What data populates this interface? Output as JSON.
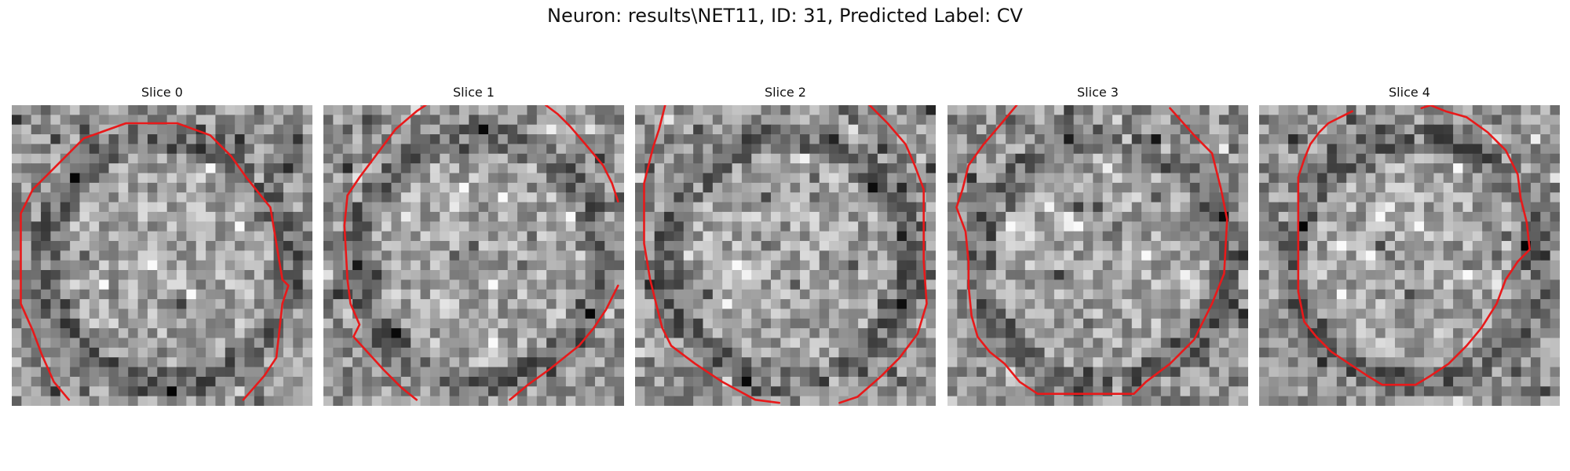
{
  "figure": {
    "title": "Neuron: results\\NET11, ID: 31, Predicted Label: CV"
  },
  "panels": [
    {
      "title": "Slice 0"
    },
    {
      "title": "Slice 1"
    },
    {
      "title": "Slice 2"
    },
    {
      "title": "Slice 3"
    },
    {
      "title": "Slice 4"
    }
  ],
  "colors": {
    "contour": "#e8191a",
    "background": "#ffffff"
  }
}
